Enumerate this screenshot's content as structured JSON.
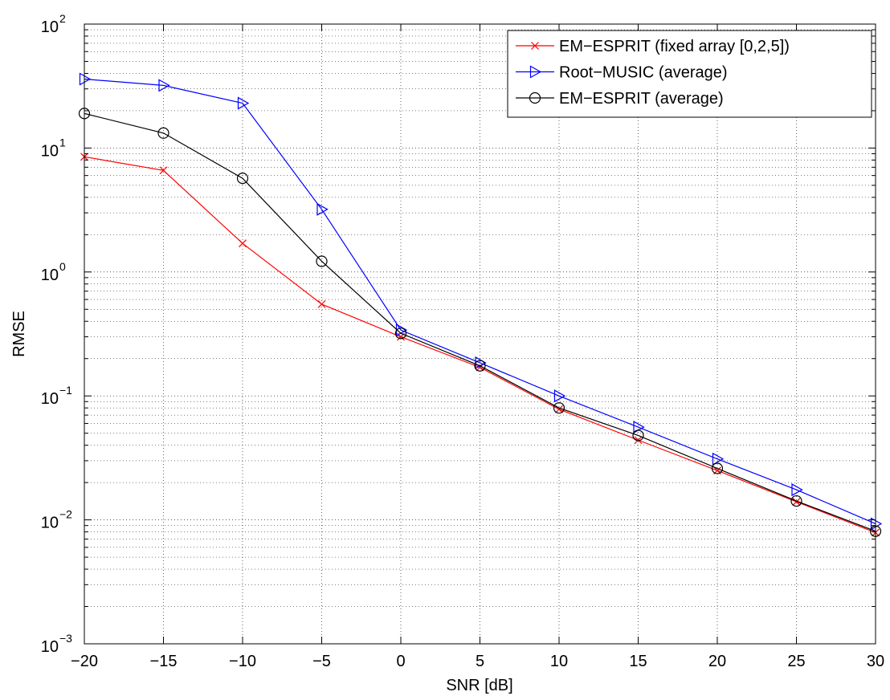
{
  "chart_data": {
    "type": "line",
    "title": "",
    "xlabel": "SNR [dB]",
    "ylabel": "RMSE",
    "x": [
      -20,
      -15,
      -10,
      -5,
      0,
      5,
      10,
      15,
      20,
      25,
      30
    ],
    "xlim": [
      -20,
      30
    ],
    "ylim": [
      0.001,
      100
    ],
    "yscale": "log",
    "grid": "major and minor, dotted",
    "legend_position": "top-right",
    "x_ticks": [
      "−20",
      "−15",
      "−10",
      "−5",
      "0",
      "5",
      "10",
      "15",
      "20",
      "25",
      "30"
    ],
    "y_ticks": [
      {
        "value": 0.001,
        "base": "10",
        "exp": "−3"
      },
      {
        "value": 0.01,
        "base": "10",
        "exp": "−2"
      },
      {
        "value": 0.1,
        "base": "10",
        "exp": "−1"
      },
      {
        "value": 1,
        "base": "10",
        "exp": "0"
      },
      {
        "value": 10,
        "base": "10",
        "exp": "1"
      },
      {
        "value": 100,
        "base": "10",
        "exp": "2"
      }
    ],
    "series": [
      {
        "name": "EM−ESPRIT (fixed array [0,2,5])",
        "color": "#ff0000",
        "marker": "x",
        "values": [
          8.5,
          6.6,
          1.7,
          0.55,
          0.3,
          0.17,
          0.078,
          0.044,
          0.025,
          0.014,
          0.0079
        ]
      },
      {
        "name": "Root−MUSIC (average)",
        "color": "#0000ff",
        "marker": "triangle-right",
        "values": [
          36,
          32,
          23,
          3.2,
          0.34,
          0.185,
          0.1,
          0.056,
          0.031,
          0.0175,
          0.0093
        ]
      },
      {
        "name": "EM−ESPRIT (average)",
        "color": "#000000",
        "marker": "circle",
        "values": [
          19,
          13.2,
          5.7,
          1.22,
          0.32,
          0.175,
          0.08,
          0.048,
          0.026,
          0.0142,
          0.0081
        ]
      }
    ]
  }
}
